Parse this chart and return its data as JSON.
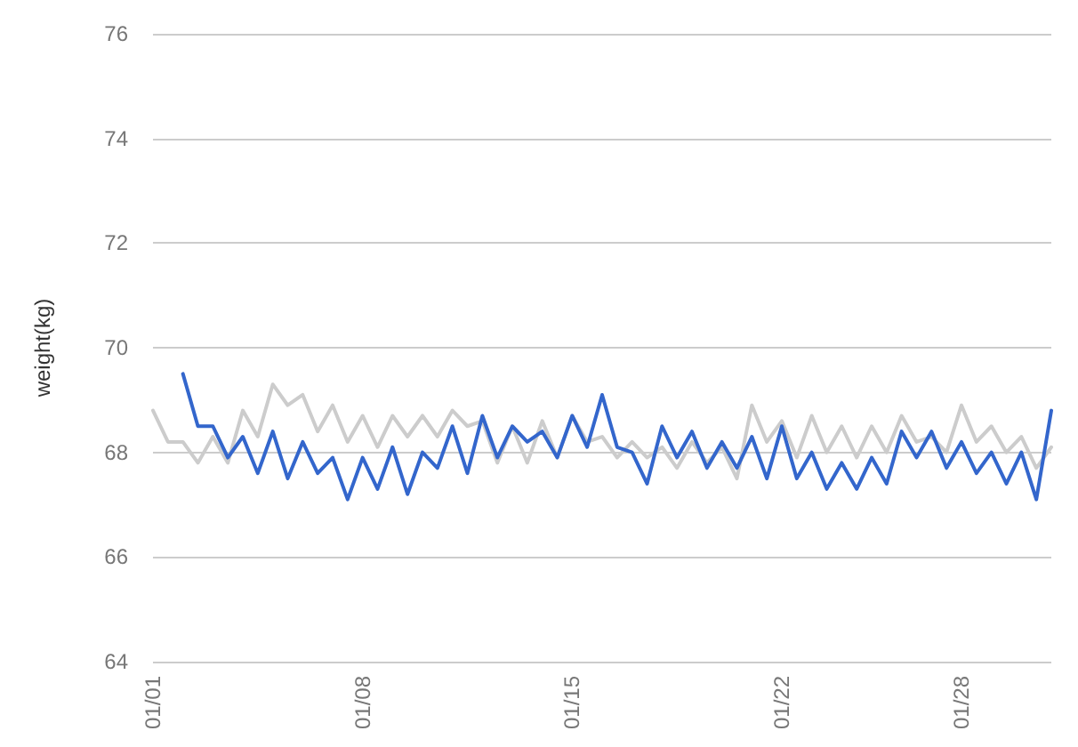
{
  "chart_data": {
    "type": "line",
    "ylabel": "weight(kg)",
    "categories": [
      "01/01",
      null,
      null,
      null,
      null,
      null,
      null,
      null,
      null,
      null,
      null,
      null,
      null,
      null,
      "01/08",
      null,
      null,
      null,
      null,
      null,
      null,
      null,
      null,
      null,
      null,
      null,
      null,
      null,
      "01/15",
      null,
      null,
      null,
      null,
      null,
      null,
      null,
      null,
      null,
      null,
      null,
      null,
      null,
      "01/22",
      null,
      null,
      null,
      null,
      null,
      null,
      null,
      null,
      null,
      null,
      null,
      "01/28",
      null,
      null,
      null,
      null,
      null,
      null
    ],
    "series": [
      {
        "color": "#cccccc",
        "values": [
          68.8,
          68.2,
          68.2,
          67.8,
          68.3,
          67.8,
          68.8,
          68.3,
          69.3,
          68.9,
          69.1,
          68.4,
          68.9,
          68.2,
          68.7,
          68.1,
          68.7,
          68.3,
          68.7,
          68.3,
          68.8,
          68.5,
          68.6,
          67.8,
          68.5,
          67.8,
          68.6,
          67.9,
          68.7,
          68.2,
          68.3,
          67.9,
          68.2,
          67.9,
          68.1,
          67.7,
          68.2,
          67.8,
          68.1,
          67.5,
          68.9,
          68.2,
          68.6,
          67.9,
          68.7,
          68.0,
          68.5,
          67.9,
          68.5,
          68.0,
          68.7,
          68.2,
          68.3,
          68.0,
          68.9,
          68.2,
          68.5,
          68.0,
          68.3,
          67.7,
          68.1
        ]
      },
      {
        "color": "#3366cc",
        "values": [
          null,
          null,
          69.5,
          68.5,
          68.5,
          67.9,
          68.3,
          67.6,
          68.4,
          67.5,
          68.2,
          67.6,
          67.9,
          67.1,
          67.9,
          67.3,
          68.1,
          67.2,
          68.0,
          67.7,
          68.5,
          67.6,
          68.7,
          67.9,
          68.5,
          68.2,
          68.4,
          67.9,
          68.7,
          68.1,
          69.1,
          68.1,
          68.0,
          67.4,
          68.5,
          67.9,
          68.4,
          67.7,
          68.2,
          67.7,
          68.3,
          67.5,
          68.5,
          67.5,
          68.0,
          67.3,
          67.8,
          67.3,
          67.9,
          67.4,
          68.4,
          67.9,
          68.4,
          67.7,
          68.2,
          67.6,
          68.0,
          67.4,
          68.0,
          67.1,
          68.8
        ]
      }
    ],
    "ylim": [
      64,
      76
    ],
    "yticks": [
      64,
      66,
      68,
      70,
      72,
      74,
      76
    ],
    "grid": "y",
    "marker": "none",
    "line_style": "solid"
  }
}
